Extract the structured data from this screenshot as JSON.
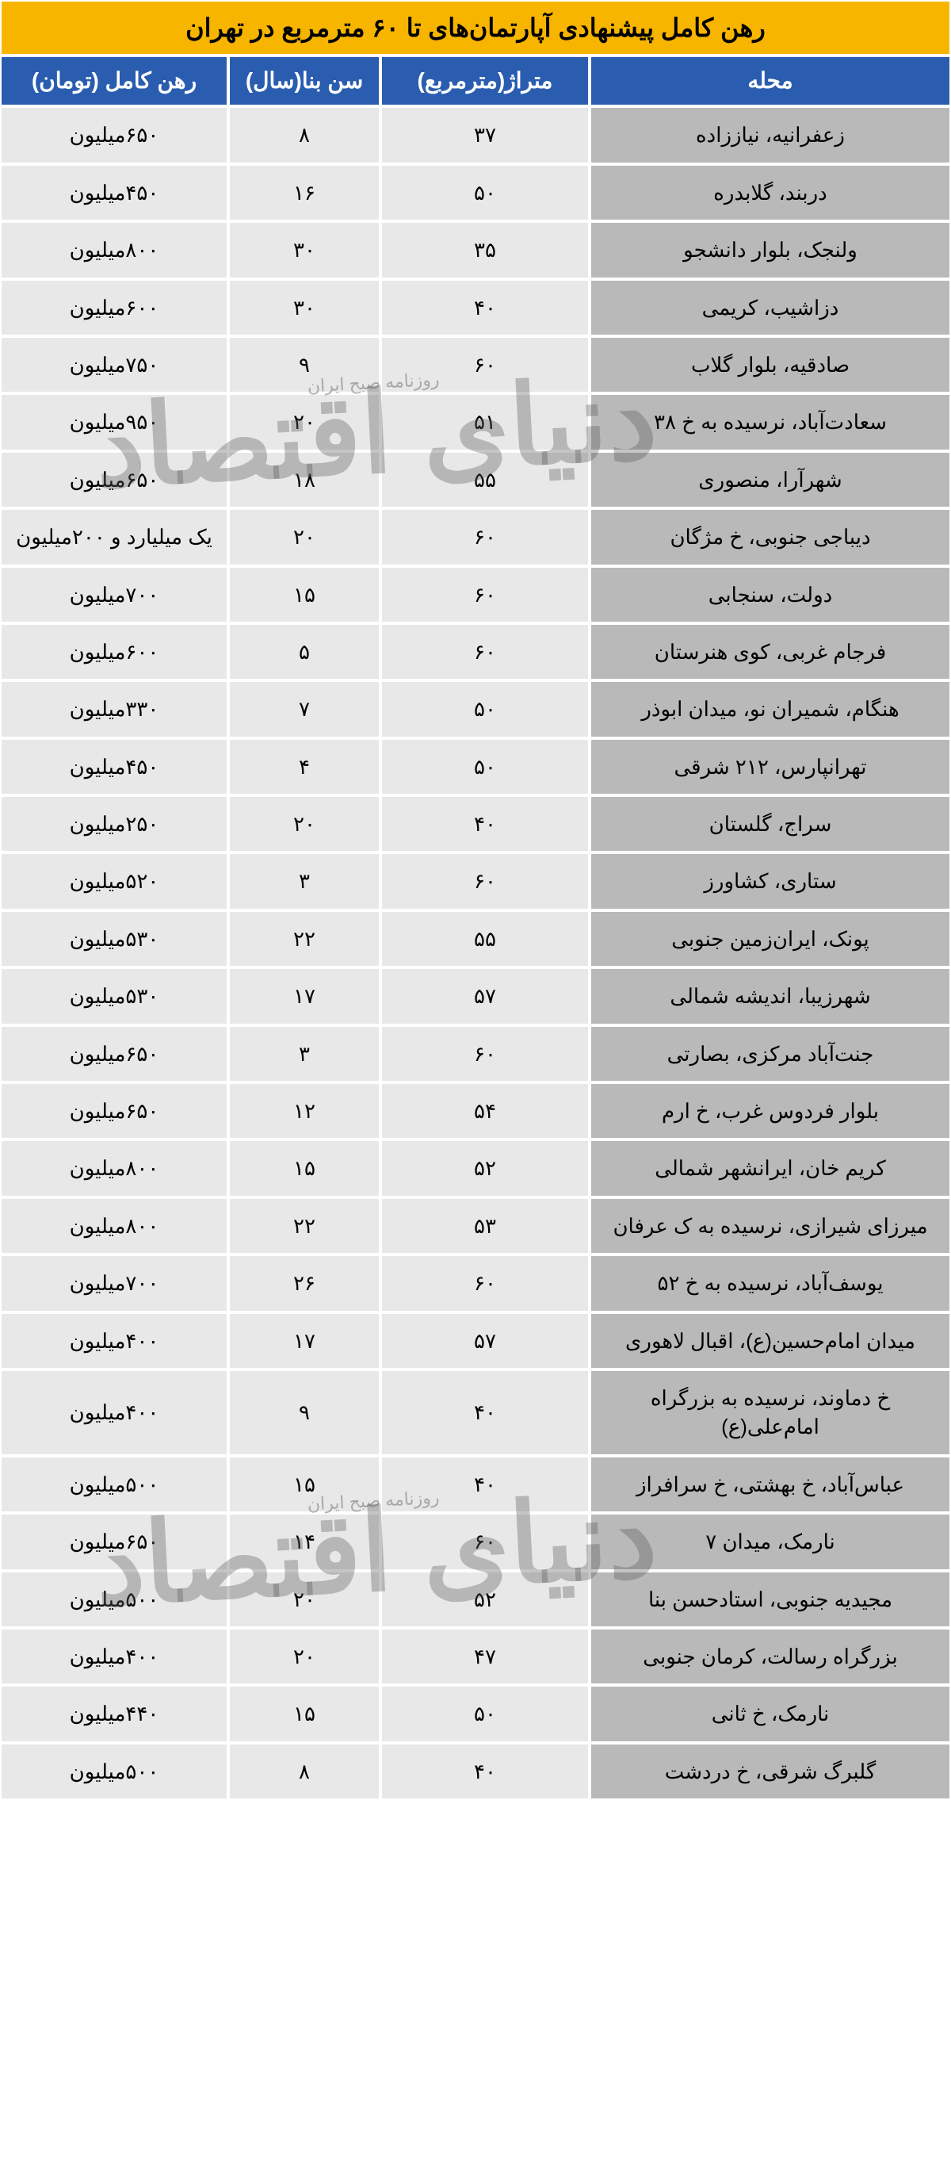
{
  "title": "رهن کامل پیشنهادی آپارتمان‌های تا ۶۰ مترمربع در تهران",
  "watermark_main": "دنیای اقتصاد",
  "watermark_sub": "روزنامه صبح ایران",
  "columns": {
    "neighborhood": "محله",
    "area": "متراژ(مترمربع)",
    "age": "سن بنا(سال)",
    "price": "رهن کامل (تومان)"
  },
  "rows": [
    {
      "neigh": "زعفرانیه، نیاززاده",
      "area": "۳۷",
      "age": "۸",
      "price": "۶۵۰میلیون"
    },
    {
      "neigh": "دربند، گلابدره",
      "area": "۵۰",
      "age": "۱۶",
      "price": "۴۵۰میلیون"
    },
    {
      "neigh": "ولنجک، بلوار دانشجو",
      "area": "۳۵",
      "age": "۳۰",
      "price": "۸۰۰میلیون"
    },
    {
      "neigh": "دزاشیب، کریمی",
      "area": "۴۰",
      "age": "۳۰",
      "price": "۶۰۰میلیون"
    },
    {
      "neigh": "صادقیه، بلوار گلاب",
      "area": "۶۰",
      "age": "۹",
      "price": "۷۵۰میلیون"
    },
    {
      "neigh": "سعادت‌آباد، نرسیده به خ ۳۸",
      "area": "۵۱",
      "age": "۲۰",
      "price": "۹۵۰میلیون"
    },
    {
      "neigh": "شهرآرا، منصوری",
      "area": "۵۵",
      "age": "۱۸",
      "price": "۶۵۰میلیون"
    },
    {
      "neigh": "دیباجی جنوبی، خ مژگان",
      "area": "۶۰",
      "age": "۲۰",
      "price": "یک میلیارد و ۲۰۰میلیون"
    },
    {
      "neigh": "دولت، سنجابی",
      "area": "۶۰",
      "age": "۱۵",
      "price": "۷۰۰میلیون"
    },
    {
      "neigh": "فرجام غربی، کوی هنرستان",
      "area": "۶۰",
      "age": "۵",
      "price": "۶۰۰میلیون"
    },
    {
      "neigh": "هنگام، شمیران نو، میدان ابوذر",
      "area": "۵۰",
      "age": "۷",
      "price": "۳۳۰میلیون"
    },
    {
      "neigh": "تهرانپارس، ۲۱۲ شرقی",
      "area": "۵۰",
      "age": "۴",
      "price": "۴۵۰میلیون"
    },
    {
      "neigh": "سراج، گلستان",
      "area": "۴۰",
      "age": "۲۰",
      "price": "۲۵۰میلیون"
    },
    {
      "neigh": "ستاری، کشاورز",
      "area": "۶۰",
      "age": "۳",
      "price": "۵۲۰میلیون"
    },
    {
      "neigh": "پونک، ایران‌زمین جنوبی",
      "area": "۵۵",
      "age": "۲۲",
      "price": "۵۳۰میلیون"
    },
    {
      "neigh": "شهرزیبا، اندیشه شمالی",
      "area": "۵۷",
      "age": "۱۷",
      "price": "۵۳۰میلیون"
    },
    {
      "neigh": "جنت‌آباد مرکزی، بصارتی",
      "area": "۶۰",
      "age": "۳",
      "price": "۶۵۰میلیون"
    },
    {
      "neigh": "بلوار فردوس غرب، خ ارم",
      "area": "۵۴",
      "age": "۱۲",
      "price": "۶۵۰میلیون"
    },
    {
      "neigh": "کریم خان، ایرانشهر شمالی",
      "area": "۵۲",
      "age": "۱۵",
      "price": "۸۰۰میلیون"
    },
    {
      "neigh": "میرزای شیرازی، نرسیده به ک عرفان",
      "area": "۵۳",
      "age": "۲۲",
      "price": "۸۰۰میلیون"
    },
    {
      "neigh": "یوسف‌آباد، نرسیده به خ ۵۲",
      "area": "۶۰",
      "age": "۲۶",
      "price": "۷۰۰میلیون"
    },
    {
      "neigh": "میدان امام‌حسین(ع)، اقبال لاهوری",
      "area": "۵۷",
      "age": "۱۷",
      "price": "۴۰۰میلیون"
    },
    {
      "neigh": "خ دماوند، نرسیده به بزرگراه امام‌علی(ع)",
      "area": "۴۰",
      "age": "۹",
      "price": "۴۰۰میلیون"
    },
    {
      "neigh": "عباس‌آباد، خ بهشتی، خ سرافراز",
      "area": "۴۰",
      "age": "۱۵",
      "price": "۵۰۰میلیون"
    },
    {
      "neigh": "نارمک، میدان ۷",
      "area": "۶۰",
      "age": "۱۴",
      "price": "۶۵۰میلیون"
    },
    {
      "neigh": "مجیدیه جنوبی، استادحسن بنا",
      "area": "۵۲",
      "age": "۲۰",
      "price": "۵۰۰میلیون"
    },
    {
      "neigh": "بزرگراه رسالت، کرمان جنوبی",
      "area": "۴۷",
      "age": "۲۰",
      "price": "۴۰۰میلیون"
    },
    {
      "neigh": "نارمک، خ ثانی",
      "area": "۵۰",
      "age": "۱۵",
      "price": "۴۴۰میلیون"
    },
    {
      "neigh": "گلبرگ شرقی، خ دردشت",
      "area": "۴۰",
      "age": "۸",
      "price": "۵۰۰میلیون"
    }
  ],
  "style": {
    "title_bg": "#f7b500",
    "title_fg": "#000000",
    "header_bg": "#2a5db0",
    "header_fg": "#ffffff",
    "neigh_bg": "#b9b9b9",
    "cell_bg": "#e8e8e8",
    "border": "#ffffff",
    "title_fontsize": 32,
    "header_fontsize": 28,
    "cell_fontsize": 26
  }
}
